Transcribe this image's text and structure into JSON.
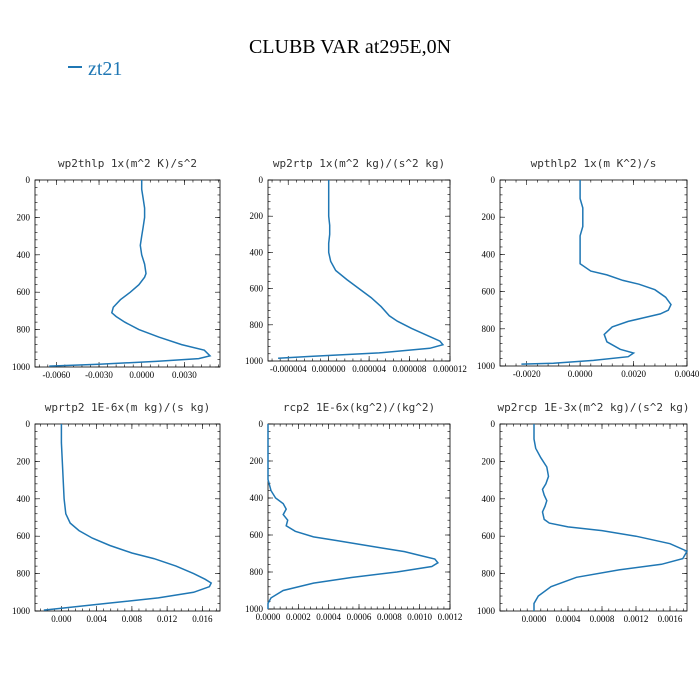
{
  "figure": {
    "title": "CLUBB VAR at295E,0N"
  },
  "legend": {
    "entries": [
      {
        "label": "zt21",
        "color": "#1f77b4"
      }
    ]
  },
  "chart_data": [
    {
      "type": "line",
      "title": "wp2thlp  1x(m^2 K)/s^2",
      "xlim": [
        -0.0075,
        0.0055
      ],
      "ylim": [
        1000,
        0
      ],
      "inverted_y": true,
      "xticks": [
        -0.006,
        -0.003,
        0.0,
        0.003
      ],
      "xtick_labels": [
        "-0.0060",
        "-0.0030",
        "0.0000",
        "0.0030"
      ],
      "yticks": [
        0,
        200,
        400,
        600,
        800,
        1000
      ],
      "series": [
        {
          "color": "#1f77b4",
          "x": [
            0.0,
            0.0,
            0.0001,
            0.0002,
            0.0002,
            0.0001,
            0.0,
            -0.0001,
            0.0,
            0.0002,
            0.0003,
            0.0002,
            -0.0002,
            -0.0008,
            -0.0015,
            -0.002,
            -0.0021,
            -0.0018,
            -0.0012,
            -0.0002,
            0.0012,
            0.0028,
            0.0044,
            0.0048,
            0.004,
            0.001,
            -0.003,
            -0.0065
          ],
          "y": [
            0,
            50,
            100,
            150,
            200,
            250,
            300,
            350,
            400,
            450,
            500,
            520,
            560,
            600,
            640,
            680,
            710,
            730,
            760,
            800,
            840,
            880,
            910,
            940,
            955,
            970,
            985,
            995
          ]
        }
      ]
    },
    {
      "type": "line",
      "title": "wp2rtp  1x(m^2 kg)/(s^2 kg)",
      "xlim": [
        -6e-06,
        1.2e-05
      ],
      "ylim": [
        1000,
        0
      ],
      "inverted_y": true,
      "xticks": [
        -4e-06,
        0.0,
        4e-06,
        8e-06,
        1.2e-05
      ],
      "xtick_labels": [
        "-0.000004",
        "0.000000",
        "0.000004",
        "0.000008",
        "0.000012"
      ],
      "yticks": [
        0,
        200,
        400,
        600,
        800,
        1000
      ],
      "series": [
        {
          "color": "#1f77b4",
          "x": [
            0.0,
            0.0,
            0.0,
            1e-07,
            1e-07,
            0.0,
            0.0,
            2e-07,
            7e-07,
            1.8e-06,
            3e-06,
            4.2e-06,
            5.2e-06,
            6e-06,
            6.8e-06,
            8.2e-06,
            9.8e-06,
            1.1e-05,
            1.13e-05,
            1e-05,
            5e-06,
            -2e-06,
            -5e-06
          ],
          "y": [
            0,
            100,
            200,
            250,
            300,
            350,
            400,
            450,
            500,
            550,
            600,
            650,
            700,
            750,
            780,
            820,
            860,
            890,
            910,
            930,
            955,
            975,
            985
          ]
        }
      ]
    },
    {
      "type": "line",
      "title": "wpthlp2  1x(m K^2)/s",
      "xlim": [
        -0.003,
        0.004
      ],
      "ylim": [
        1000,
        0
      ],
      "inverted_y": true,
      "xticks": [
        -0.002,
        0.0,
        0.002,
        0.004
      ],
      "xtick_labels": [
        "-0.0020",
        "0.0000",
        "0.0020",
        "0.0040"
      ],
      "yticks": [
        0,
        200,
        400,
        600,
        800,
        1000
      ],
      "series": [
        {
          "color": "#1f77b4",
          "x": [
            0.0,
            0.0,
            0.0,
            0.0001,
            0.0001,
            0.0001,
            0.0,
            0.0,
            0.0,
            0.0004,
            0.001,
            0.0016,
            0.0022,
            0.0028,
            0.0032,
            0.0034,
            0.0033,
            0.003,
            0.0024,
            0.0018,
            0.0012,
            0.0009,
            0.001,
            0.0015,
            0.002,
            0.0018,
            0.0005,
            -0.001,
            -0.0022
          ],
          "y": [
            0,
            50,
            100,
            150,
            200,
            250,
            300,
            350,
            450,
            490,
            510,
            540,
            560,
            590,
            630,
            670,
            700,
            720,
            740,
            760,
            790,
            830,
            870,
            910,
            930,
            950,
            970,
            985,
            990
          ]
        }
      ]
    },
    {
      "type": "line",
      "title": "wprtp2  1E-6x(m kg)/(s kg)",
      "xlim": [
        -0.003,
        0.018
      ],
      "ylim": [
        1000,
        0
      ],
      "inverted_y": true,
      "xticks": [
        0.0,
        0.004,
        0.008,
        0.012,
        0.016
      ],
      "xtick_labels": [
        "0.000",
        "0.004",
        "0.008",
        "0.012",
        "0.016"
      ],
      "yticks": [
        0,
        200,
        400,
        600,
        800,
        1000
      ],
      "series": [
        {
          "color": "#1f77b4",
          "x": [
            0.0,
            0.0,
            0.0001,
            0.0002,
            0.0003,
            0.0005,
            0.001,
            0.002,
            0.0035,
            0.0055,
            0.008,
            0.0105,
            0.013,
            0.015,
            0.0163,
            0.017,
            0.0168,
            0.015,
            0.011,
            0.005,
            0.0,
            -0.002
          ],
          "y": [
            0,
            100,
            200,
            300,
            400,
            480,
            530,
            570,
            610,
            650,
            690,
            720,
            760,
            800,
            830,
            850,
            870,
            900,
            930,
            960,
            985,
            995
          ]
        }
      ]
    },
    {
      "type": "line",
      "title": "rcp2  1E-6x(kg^2)/(kg^2)",
      "xlim": [
        0.0,
        0.0012
      ],
      "ylim": [
        1000,
        0
      ],
      "inverted_y": true,
      "xticks": [
        0.0,
        0.0002,
        0.0004,
        0.0006,
        0.0008,
        0.001,
        0.0012
      ],
      "xtick_labels": [
        "0.0000",
        "0.0002",
        "0.0004",
        "0.0006",
        "0.0008",
        "0.0010",
        "0.0012"
      ],
      "yticks": [
        0,
        200,
        400,
        600,
        800,
        1000
      ],
      "series": [
        {
          "color": "#1f77b4",
          "x": [
            0.0,
            0.0,
            0.0,
            0.0,
            2e-05,
            5e-05,
            0.0001,
            0.00012,
            0.0001,
            0.00013,
            0.00012,
            0.00018,
            0.0003,
            0.00045,
            0.0006,
            0.00075,
            0.0009,
            0.001,
            0.0011,
            0.00112,
            0.00108,
            0.00085,
            0.00055,
            0.0003,
            0.0001,
            2e-05,
            0.0,
            0.0
          ],
          "y": [
            0,
            100,
            200,
            300,
            360,
            400,
            430,
            460,
            490,
            520,
            550,
            580,
            610,
            630,
            650,
            670,
            690,
            710,
            730,
            750,
            770,
            800,
            830,
            860,
            900,
            940,
            970,
            1000
          ]
        }
      ]
    },
    {
      "type": "line",
      "title": "wp2rcp  1E-3x(m^2 kg)/(s^2 kg)",
      "xlim": [
        -0.0004,
        0.0018
      ],
      "ylim": [
        1000,
        0
      ],
      "inverted_y": true,
      "xticks": [
        0.0,
        0.0004,
        0.0008,
        0.0012,
        0.0016
      ],
      "xtick_labels": [
        "0.0000",
        "0.0004",
        "0.0008",
        "0.0012",
        "0.0016"
      ],
      "yticks": [
        0,
        200,
        400,
        600,
        800,
        1000
      ],
      "series": [
        {
          "color": "#1f77b4",
          "x": [
            0.0,
            0.0,
            2e-05,
            8e-05,
            0.00015,
            0.00017,
            0.00014,
            0.0001,
            0.00012,
            0.00015,
            0.00013,
            0.0001,
            0.00012,
            0.00018,
            0.0004,
            0.0008,
            0.0012,
            0.0016,
            0.0018,
            0.00175,
            0.0015,
            0.001,
            0.0005,
            0.0002,
            5e-05,
            0.0,
            0.0
          ],
          "y": [
            0,
            80,
            130,
            180,
            230,
            280,
            320,
            350,
            380,
            410,
            440,
            470,
            510,
            530,
            550,
            570,
            600,
            640,
            680,
            720,
            750,
            780,
            820,
            870,
            920,
            960,
            1000
          ]
        }
      ]
    }
  ]
}
